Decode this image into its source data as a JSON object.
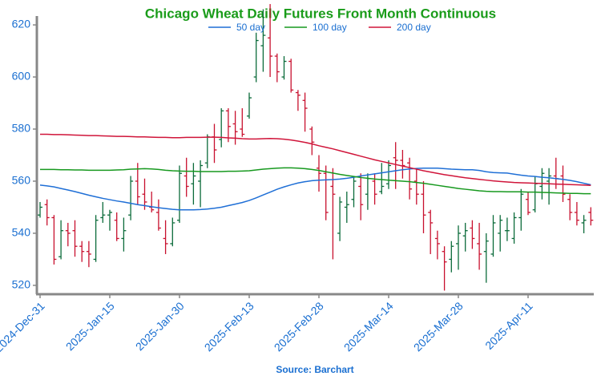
{
  "chart_data": {
    "type": "ohlc",
    "title": "Chicago Wheat Daily Futures Front Month Continuous",
    "source": "Source: Barchart",
    "categories": [
      "2024-Dec-31",
      null,
      null,
      null,
      null,
      null,
      null,
      null,
      null,
      null,
      "2025-Jan-15",
      null,
      null,
      null,
      null,
      null,
      null,
      null,
      null,
      null,
      "2025-Jan-30",
      null,
      null,
      null,
      null,
      null,
      null,
      null,
      null,
      null,
      "2025-Feb-13",
      null,
      null,
      null,
      null,
      null,
      null,
      null,
      null,
      null,
      "2025-Feb-28",
      null,
      null,
      null,
      null,
      null,
      null,
      null,
      null,
      null,
      "2025-Mar-14",
      null,
      null,
      null,
      null,
      null,
      null,
      null,
      null,
      null,
      "2025-Mar-28",
      null,
      null,
      null,
      null,
      null,
      null,
      null,
      null,
      null,
      "2025-Apr-11",
      null,
      null,
      null,
      null,
      null,
      null,
      null,
      null,
      null
    ],
    "open": [
      547,
      551,
      546,
      531,
      541,
      541,
      535,
      533,
      530,
      546,
      547,
      545,
      538,
      547,
      560,
      555,
      550,
      548,
      538,
      536,
      545,
      562,
      559,
      560,
      567,
      577,
      576,
      587,
      582,
      580,
      585,
      600,
      612,
      615,
      608,
      600,
      606,
      594,
      591,
      580,
      565,
      563,
      558,
      540,
      550,
      553,
      558,
      555,
      560,
      556,
      559,
      569,
      568,
      567,
      560,
      555,
      548,
      538,
      533,
      530,
      536,
      539,
      542,
      536,
      533,
      532,
      540,
      541,
      538,
      546,
      553,
      549,
      558,
      560,
      562,
      562,
      553,
      548,
      544,
      548
    ],
    "high": [
      552,
      553,
      547,
      545,
      544,
      545,
      537,
      537,
      547,
      552,
      549,
      548,
      546,
      562,
      567,
      561,
      556,
      553,
      545,
      546,
      566,
      569,
      567,
      568,
      578,
      582,
      588,
      588,
      587,
      588,
      594,
      617,
      626,
      628,
      609,
      608,
      607,
      595,
      594,
      581,
      570,
      566,
      565,
      554,
      556,
      562,
      563,
      563,
      563,
      567,
      568,
      575,
      572,
      569,
      565,
      560,
      549,
      541,
      535,
      537,
      543,
      544,
      545,
      544,
      540,
      547,
      547,
      546,
      548,
      557,
      556,
      562,
      565,
      565,
      569,
      566,
      555,
      552,
      547,
      550
    ],
    "low": [
      546,
      543,
      528,
      530,
      535,
      531,
      529,
      527,
      529,
      544,
      541,
      537,
      533,
      545,
      551,
      549,
      548,
      541,
      532,
      535,
      544,
      554,
      551,
      550,
      565,
      567,
      573,
      575,
      574,
      577,
      584,
      598,
      602,
      600,
      598,
      599,
      594,
      587,
      579,
      570,
      556,
      545,
      530,
      537,
      544,
      550,
      545,
      549,
      551,
      555,
      557,
      557,
      561,
      553,
      551,
      540,
      532,
      530,
      518,
      525,
      526,
      533,
      534,
      526,
      521,
      531,
      533,
      537,
      536,
      541,
      547,
      548,
      553,
      551,
      557,
      552,
      545,
      543,
      540,
      543
    ],
    "close": [
      550,
      546,
      530,
      541,
      540,
      535,
      533,
      532,
      545,
      547,
      548,
      538,
      541,
      560,
      554,
      552,
      549,
      542,
      536,
      544,
      563,
      558,
      562,
      566,
      577,
      572,
      587,
      581,
      579,
      578,
      592,
      614,
      616,
      608,
      602,
      606,
      595,
      593,
      588,
      575,
      563,
      548,
      555,
      552,
      551,
      560,
      551,
      561,
      555,
      558,
      566,
      568,
      566,
      557,
      555,
      547,
      544,
      536,
      529,
      535,
      540,
      541,
      538,
      532,
      537,
      544,
      545,
      541,
      546,
      555,
      548,
      559,
      563,
      562,
      561,
      555,
      548,
      545,
      545,
      545
    ],
    "up_color": "#0b6b3a",
    "down_color": "#c8102e",
    "series": [
      {
        "name": "50 day",
        "color": "#1f6fd6",
        "values": [
          558.5,
          558.2,
          557.8,
          557.2,
          556.6,
          556,
          555.3,
          554.6,
          554,
          553.4,
          552.9,
          552.4,
          552,
          551.5,
          551,
          550.6,
          550.2,
          549.8,
          549.5,
          549.2,
          549,
          549,
          549,
          549.1,
          549.3,
          549.6,
          550,
          550.6,
          551.2,
          551.8,
          552.6,
          553.6,
          554.7,
          555.8,
          556.9,
          557.8,
          558.6,
          559.3,
          559.8,
          560.2,
          560.4,
          560.5,
          560.6,
          560.8,
          561.1,
          561.5,
          562,
          562.4,
          562.8,
          563.2,
          563.6,
          564,
          564.4,
          564.7,
          564.9,
          565,
          565,
          565,
          564.8,
          564.6,
          564.5,
          564.4,
          564.4,
          564.1,
          563.6,
          563.3,
          563.2,
          563.1,
          562.7,
          562.3,
          562,
          561.8,
          561.5,
          561.3,
          561,
          560.7,
          560.3,
          559.8,
          559.2,
          558.6
        ]
      },
      {
        "name": "100 day",
        "color": "#17991f",
        "values": [
          564.5,
          564.5,
          564.5,
          564.4,
          564.4,
          564.3,
          564.3,
          564.2,
          564.2,
          564.2,
          564.2,
          564.3,
          564.4,
          564.6,
          564.7,
          564.8,
          564.7,
          564.5,
          564.2,
          564,
          563.9,
          563.8,
          563.8,
          563.7,
          563.7,
          563.7,
          563.7,
          563.8,
          563.8,
          563.9,
          564,
          564.3,
          564.6,
          564.8,
          565,
          565.1,
          565.1,
          565,
          564.8,
          564.5,
          564.1,
          563.6,
          563.1,
          562.6,
          562.2,
          561.8,
          561.4,
          561.1,
          560.8,
          560.6,
          560.4,
          560.2,
          560,
          559.8,
          559.5,
          559.2,
          558.8,
          558.4,
          558,
          557.6,
          557.2,
          556.9,
          556.6,
          556.3,
          556.1,
          556,
          556,
          555.9,
          555.9,
          555.9,
          555.8,
          555.8,
          555.7,
          555.6,
          555.5,
          555.4,
          555.3,
          555.3,
          555.2,
          555.2
        ]
      },
      {
        "name": "200 day",
        "color": "#d0153a",
        "values": [
          578,
          578,
          577.9,
          577.9,
          577.8,
          577.7,
          577.6,
          577.5,
          577.5,
          577.4,
          577.3,
          577.2,
          577.2,
          577.1,
          577,
          577,
          576.9,
          576.8,
          576.8,
          576.7,
          576.7,
          576.8,
          576.8,
          576.8,
          576.9,
          576.9,
          576.8,
          576.6,
          576.5,
          576.3,
          576.2,
          576.2,
          576.3,
          576.4,
          576.3,
          576.1,
          575.8,
          575.4,
          574.9,
          574.3,
          573.6,
          573,
          572.4,
          571.7,
          571,
          570.3,
          569.6,
          568.9,
          568.2,
          567.6,
          567,
          566.4,
          565.8,
          565.2,
          564.6,
          564,
          563.5,
          563,
          562.5,
          562.1,
          561.7,
          561.3,
          561,
          560.7,
          560.4,
          560.1,
          559.9,
          559.7,
          559.5,
          559.4,
          559.3,
          559.2,
          559.1,
          559,
          558.9,
          558.8,
          558.7,
          558.6,
          558.5,
          558.4
        ]
      }
    ],
    "ylim": [
      516.6,
      623.4
    ],
    "yticks": [
      520,
      540,
      560,
      580,
      600,
      620
    ]
  }
}
